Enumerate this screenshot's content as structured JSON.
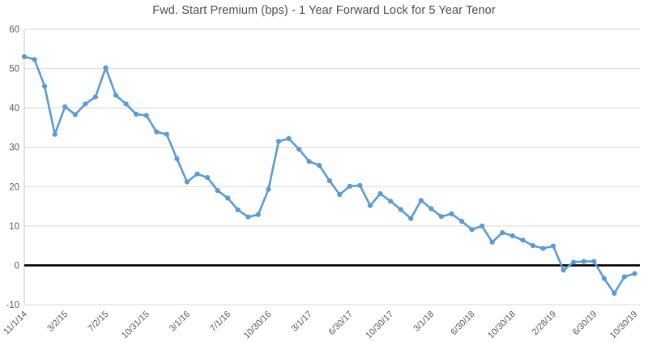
{
  "chart_data": {
    "type": "line",
    "title": "Fwd. Start Premium (bps) - 1 Year Forward Lock for 5 Year Tenor",
    "xlabel": "",
    "ylabel": "",
    "ylim": [
      -10,
      60
    ],
    "y_ticks": [
      60,
      50,
      40,
      30,
      20,
      10,
      0,
      -10
    ],
    "grid": true,
    "zero_line_emphasized": true,
    "legend": "none",
    "x_tick_labels": [
      "11/1/14",
      "3/2/15",
      "7/2/15",
      "10/31/15",
      "3/1/16",
      "7/1/16",
      "10/30/16",
      "3/1/17",
      "6/30/17",
      "10/30/17",
      "3/1/18",
      "6/30/18",
      "10/30/18",
      "2/28/19",
      "6/30/19",
      "10/30/19"
    ],
    "x_tick_every": 4,
    "series": [
      {
        "name": "Fwd. Start Premium (bps)",
        "values": [
          53,
          52.3,
          45.5,
          33.3,
          40.3,
          38.3,
          41,
          42.8,
          50.2,
          43.2,
          41,
          38.4,
          38.1,
          33.9,
          33.3,
          27.1,
          21.2,
          23.2,
          22.3,
          19,
          17.1,
          14.1,
          12.3,
          12.9,
          19.3,
          31.5,
          32.2,
          29.5,
          26.4,
          25.4,
          21.5,
          18,
          20.1,
          20.3,
          15.2,
          18.2,
          16.3,
          14.2,
          11.9,
          16.5,
          14.4,
          12.4,
          13.1,
          11.2,
          9.1,
          10,
          5.9,
          8.3,
          7.5,
          6.4,
          5,
          4.3,
          4.9,
          -1.2,
          0.8,
          1,
          1,
          -3.3,
          -7.1,
          -2.9,
          -2.1
        ]
      }
    ],
    "colors": {
      "line": "#5b9bd5",
      "marker": "#5b9bd5",
      "grid": "#d9d9d9",
      "axis_line": "#c6c6c6",
      "zero_line": "#000000",
      "tick_text": "#595959",
      "title_text": "#4d4d4d"
    }
  }
}
